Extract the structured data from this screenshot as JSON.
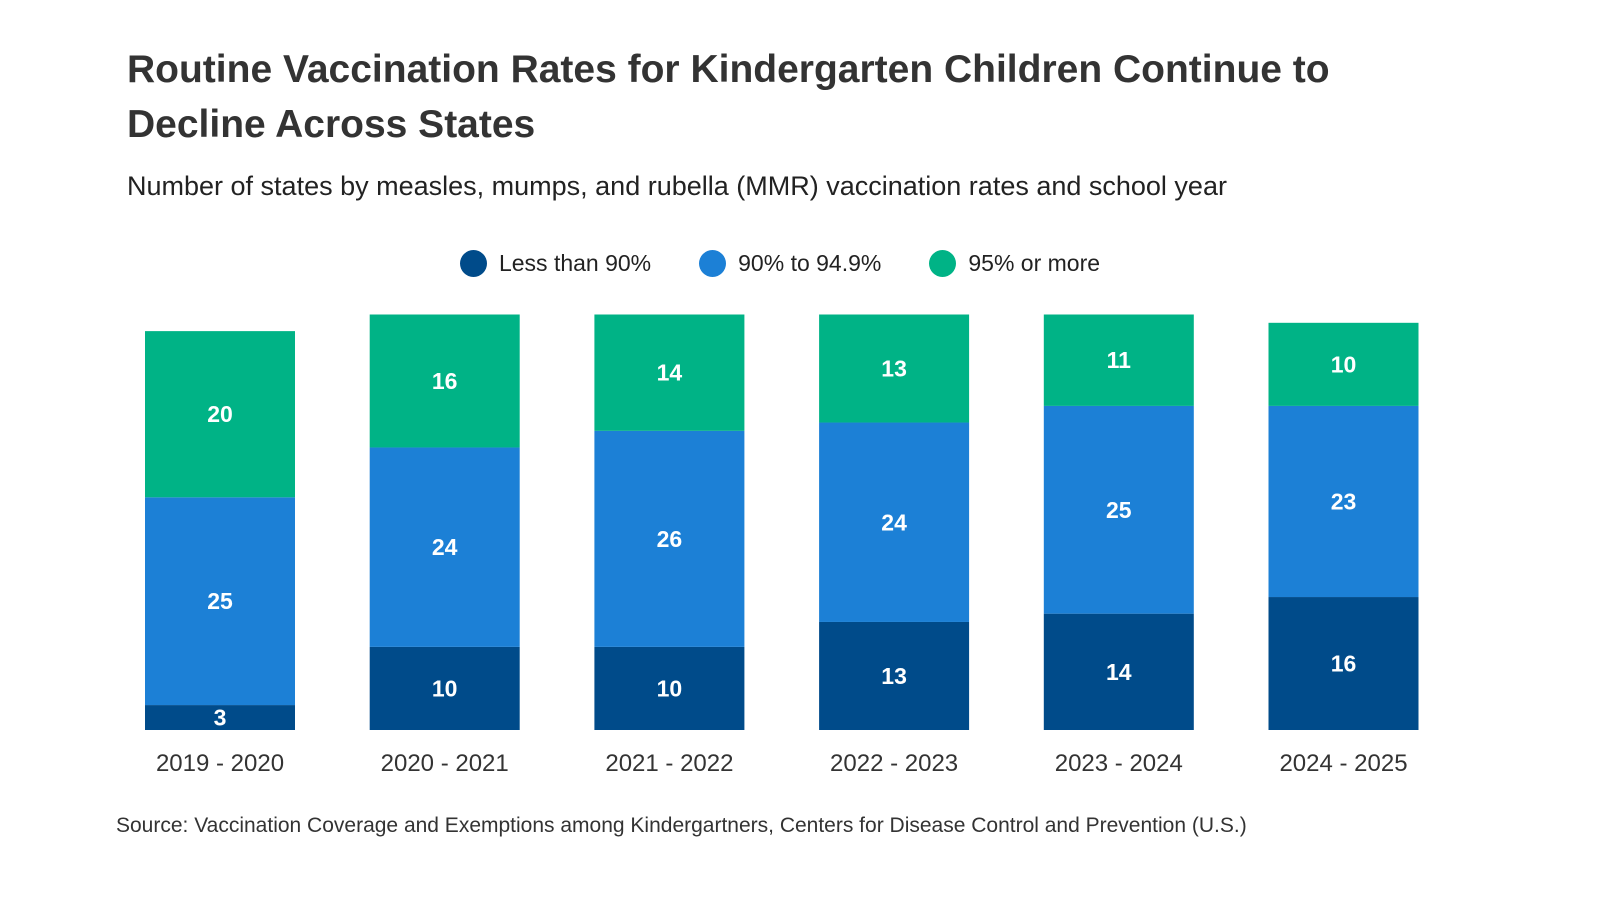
{
  "chart_data": {
    "type": "bar",
    "stacked": true,
    "title": "Routine Vaccination Rates for Kindergarten Children Continue to Decline Across States",
    "subtitle": "Number of states by measles, mumps, and rubella (MMR) vaccination rates and school year",
    "categories": [
      "2019 - 2020",
      "2020 - 2021",
      "2021 - 2022",
      "2022 - 2023",
      "2023 - 2024",
      "2024 - 2025"
    ],
    "series": [
      {
        "name": "Less than 90%",
        "color": "#004B8A",
        "values": [
          3,
          10,
          10,
          13,
          14,
          16
        ]
      },
      {
        "name": "90% to 94.9%",
        "color": "#1C80D6",
        "values": [
          25,
          24,
          26,
          24,
          25,
          23
        ]
      },
      {
        "name": "95% or more",
        "color": "#00B386",
        "values": [
          20,
          16,
          14,
          13,
          11,
          10
        ]
      }
    ],
    "legend_position": "top-center",
    "grid": false,
    "y_axis_shown": false,
    "data_labels": true,
    "source": "Source:  Vaccination Coverage and Exemptions among Kindergartners, Centers for Disease Control and Prevention (U.S.)"
  }
}
